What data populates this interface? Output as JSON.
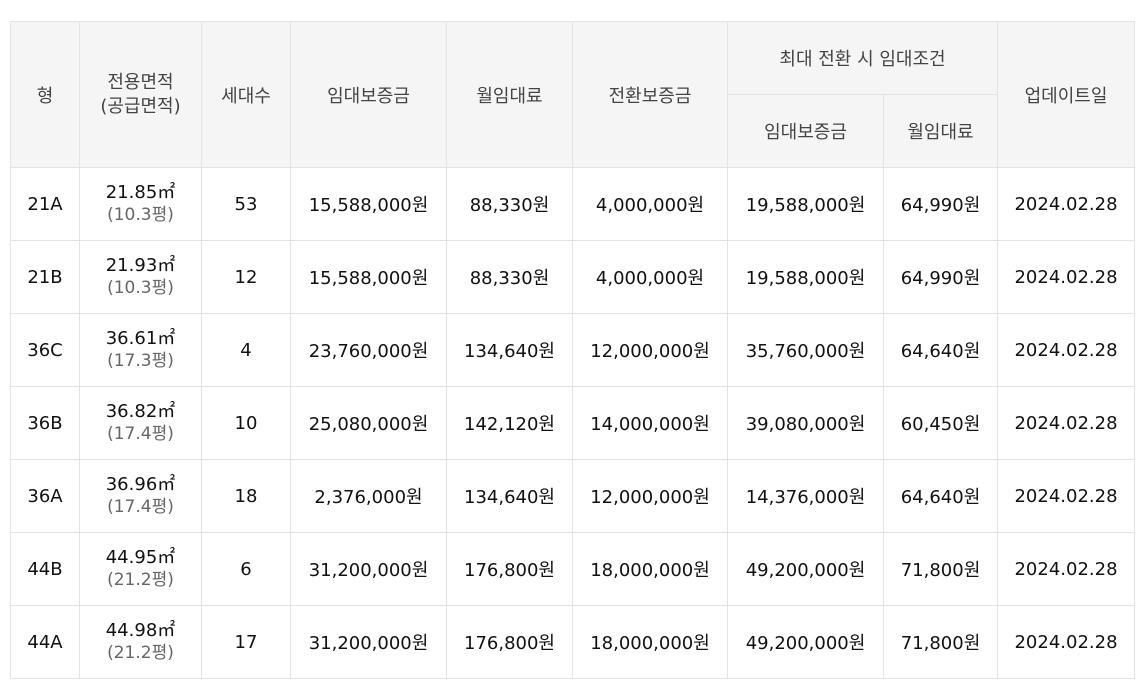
{
  "headers": {
    "type": "형",
    "area_line1": "전용면적",
    "area_line2": "(공급면적)",
    "households": "세대수",
    "deposit": "임대보증금",
    "monthly_rent": "월임대료",
    "conversion_deposit": "전환보증금",
    "max_conversion_group": "최대 전환 시 임대조건",
    "max_deposit": "임대보증금",
    "max_monthly_rent": "월임대료",
    "updated": "업데이트일"
  },
  "rows": [
    {
      "type": "21A",
      "area": "21.85㎡",
      "pyeong": "(10.3평)",
      "households": "53",
      "deposit": "15,588,000원",
      "monthly_rent": "88,330원",
      "conversion_deposit": "4,000,000원",
      "max_deposit": "19,588,000원",
      "max_monthly_rent": "64,990원",
      "updated": "2024.02.28"
    },
    {
      "type": "21B",
      "area": "21.93㎡",
      "pyeong": "(10.3평)",
      "households": "12",
      "deposit": "15,588,000원",
      "monthly_rent": "88,330원",
      "conversion_deposit": "4,000,000원",
      "max_deposit": "19,588,000원",
      "max_monthly_rent": "64,990원",
      "updated": "2024.02.28"
    },
    {
      "type": "36C",
      "area": "36.61㎡",
      "pyeong": "(17.3평)",
      "households": "4",
      "deposit": "23,760,000원",
      "monthly_rent": "134,640원",
      "conversion_deposit": "12,000,000원",
      "max_deposit": "35,760,000원",
      "max_monthly_rent": "64,640원",
      "updated": "2024.02.28"
    },
    {
      "type": "36B",
      "area": "36.82㎡",
      "pyeong": "(17.4평)",
      "households": "10",
      "deposit": "25,080,000원",
      "monthly_rent": "142,120원",
      "conversion_deposit": "14,000,000원",
      "max_deposit": "39,080,000원",
      "max_monthly_rent": "60,450원",
      "updated": "2024.02.28"
    },
    {
      "type": "36A",
      "area": "36.96㎡",
      "pyeong": "(17.4평)",
      "households": "18",
      "deposit": "2,376,000원",
      "monthly_rent": "134,640원",
      "conversion_deposit": "12,000,000원",
      "max_deposit": "14,376,000원",
      "max_monthly_rent": "64,640원",
      "updated": "2024.02.28"
    },
    {
      "type": "44B",
      "area": "44.95㎡",
      "pyeong": "(21.2평)",
      "households": "6",
      "deposit": "31,200,000원",
      "monthly_rent": "176,800원",
      "conversion_deposit": "18,000,000원",
      "max_deposit": "49,200,000원",
      "max_monthly_rent": "71,800원",
      "updated": "2024.02.28"
    },
    {
      "type": "44A",
      "area": "44.98㎡",
      "pyeong": "(21.2평)",
      "households": "17",
      "deposit": "31,200,000원",
      "monthly_rent": "176,800원",
      "conversion_deposit": "18,000,000원",
      "max_deposit": "49,200,000원",
      "max_monthly_rent": "71,800원",
      "updated": "2024.02.28"
    }
  ]
}
